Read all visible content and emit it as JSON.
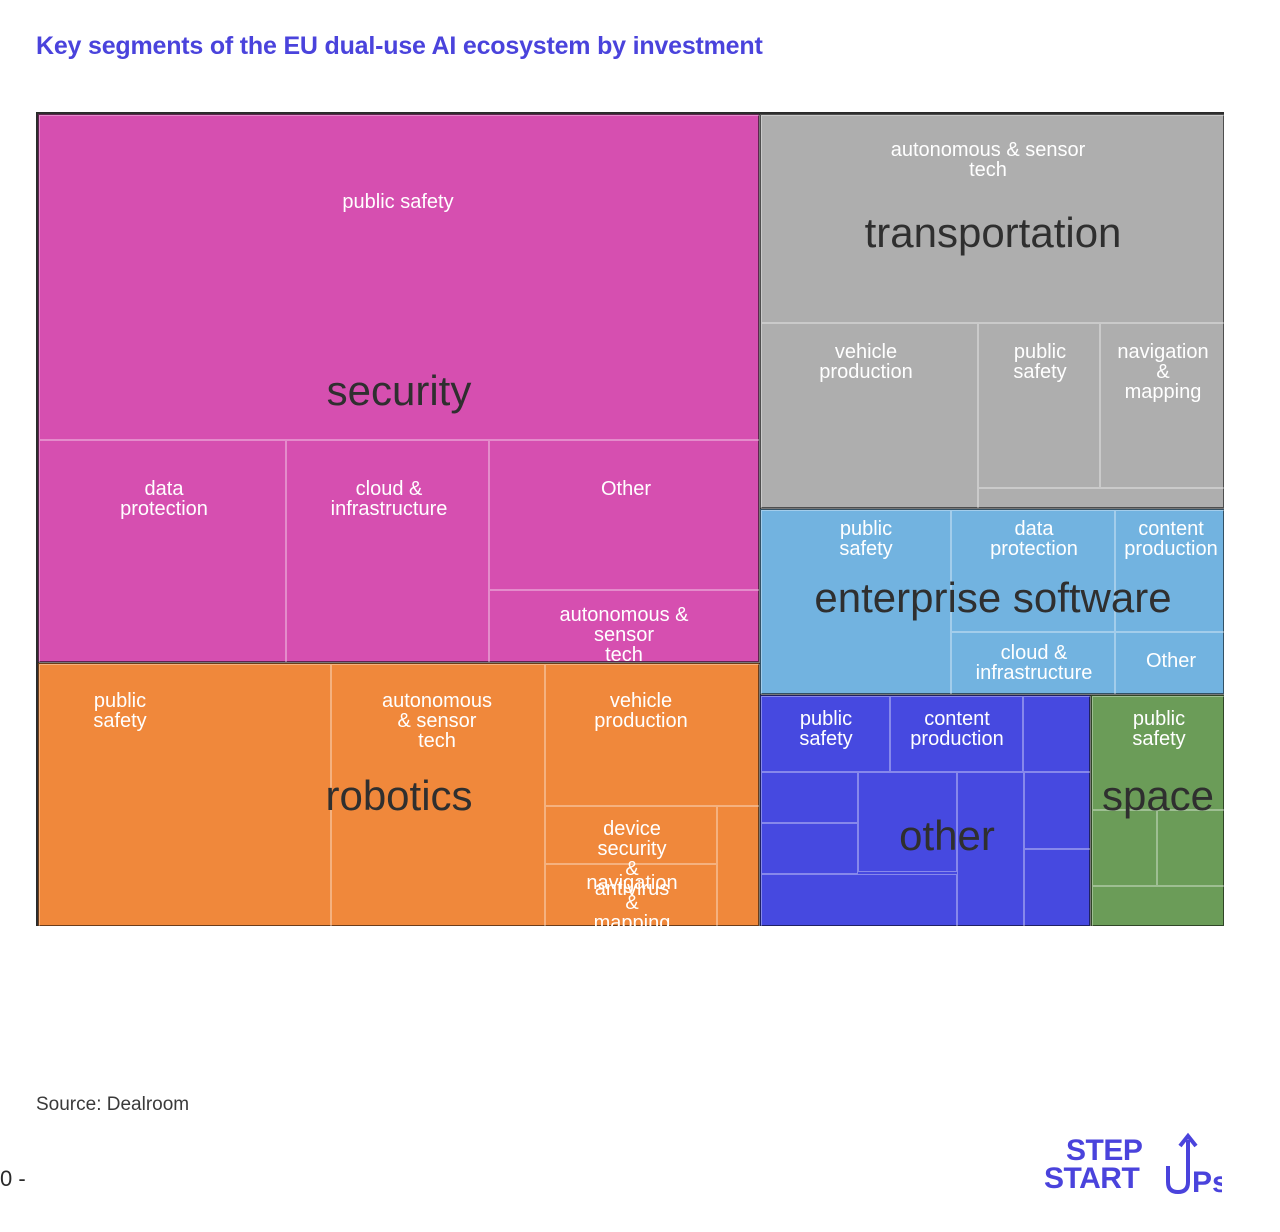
{
  "title": "Key segments of the EU dual-use AI ecosystem by investment",
  "source": "Source: Dealroom",
  "page_number": "0 -",
  "logo": {
    "line1": "STEP",
    "line2": "START",
    "line3": "UPS",
    "arrow_icon": "up-arrow-icon"
  },
  "colors": {
    "title": "#4a43dc",
    "security": "#d64fb0",
    "transportation": "#aeaeae",
    "enterprise_software": "#72b3e0",
    "robotics": "#f0883b",
    "other": "#4649e0",
    "space": "#6b9c58"
  },
  "chart_data": {
    "type": "treemap",
    "title": "Key segments of the EU dual-use AI ecosystem by investment",
    "segments": [
      {
        "key": "security",
        "name": "security",
        "children": [
          {
            "name": "public safety"
          },
          {
            "name": "data protection"
          },
          {
            "name": "cloud &\ninfrastructure"
          },
          {
            "name": "Other"
          },
          {
            "name": "autonomous & sensor\ntech"
          }
        ]
      },
      {
        "key": "transportation",
        "name": "transportation",
        "children": [
          {
            "name": "autonomous & sensor tech"
          },
          {
            "name": "vehicle production"
          },
          {
            "name": "public\nsafety"
          },
          {
            "name": "navigation\n& mapping"
          },
          {
            "name": ""
          }
        ]
      },
      {
        "key": "enterprise_software",
        "name": "enterprise  software",
        "children": [
          {
            "name": "public\nsafety"
          },
          {
            "name": "data\nprotection"
          },
          {
            "name": "content\nproduction"
          },
          {
            "name": "cloud &\ninfrastructure"
          },
          {
            "name": "Other"
          }
        ]
      },
      {
        "key": "robotics",
        "name": "robotics",
        "children": [
          {
            "name": "public\nsafety"
          },
          {
            "name": "autonomous\n& sensor tech"
          },
          {
            "name": "vehicle\nproduction"
          },
          {
            "name": "device security\n& antivirus"
          },
          {
            "name": "navigation\n& mapping"
          }
        ]
      },
      {
        "key": "other",
        "name": "other",
        "children": [
          {
            "name": "public\nsafety"
          },
          {
            "name": "content\nproduction"
          }
        ]
      },
      {
        "key": "space",
        "name": "space",
        "children": [
          {
            "name": "public\nsafety"
          }
        ]
      }
    ]
  }
}
